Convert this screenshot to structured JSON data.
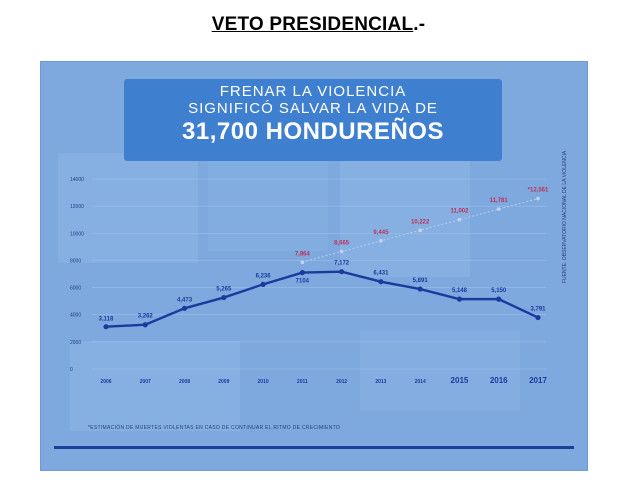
{
  "document": {
    "title_main": "VETO PRESIDENCIAL",
    "title_suffix": ".-"
  },
  "infographic": {
    "banner": {
      "line1": "FRENAR LA VIOLENCIA",
      "line2": "SIGNIFICÓ SALVAR LA VIDA DE",
      "highlight": "31,700 HONDUREÑOS"
    },
    "footnote": "*ESTIMACIÓN DE MUERTES VIOLENTAS EN CASO DE CONTINUAR EL RITMO DE CRECIMIENTO",
    "source": "FUENTE: OBSERVATORIO NACIONAL DE LA VIOLENCIA"
  },
  "chart_data": {
    "type": "line",
    "x": [
      "2006",
      "2007",
      "2008",
      "2009",
      "2010",
      "2011",
      "2012",
      "2013",
      "2014",
      "2015",
      "2016",
      "2017"
    ],
    "ylim": [
      0,
      14000
    ],
    "y_ticks": [
      "0",
      "2000",
      "4000",
      "6000",
      "8000",
      "10000",
      "12000",
      "14000"
    ],
    "grid": true,
    "series": [
      {
        "values": [
          3118,
          3262,
          4473,
          5265,
          6236,
          7104,
          7172,
          6431,
          5891,
          5148,
          5150,
          3791
        ],
        "labels": [
          "3,118",
          "3,262",
          "4,473",
          "5,265",
          "6,236",
          "7104",
          "7,172",
          "6,431",
          "5,891",
          "5,148",
          "5,150",
          "3,791"
        ],
        "color": "#1c3a9e"
      },
      {
        "x": [
          "2011",
          "2012",
          "2013",
          "2014",
          "2015",
          "2016",
          "2017"
        ],
        "values": [
          7864,
          8665,
          9445,
          10222,
          11002,
          11781,
          12561
        ],
        "labels": [
          "7,864",
          "8,665",
          "9,445",
          "10,222",
          "11,002",
          "11,781",
          "*12,561"
        ],
        "color": "#c0305a",
        "dashed": true
      }
    ]
  }
}
